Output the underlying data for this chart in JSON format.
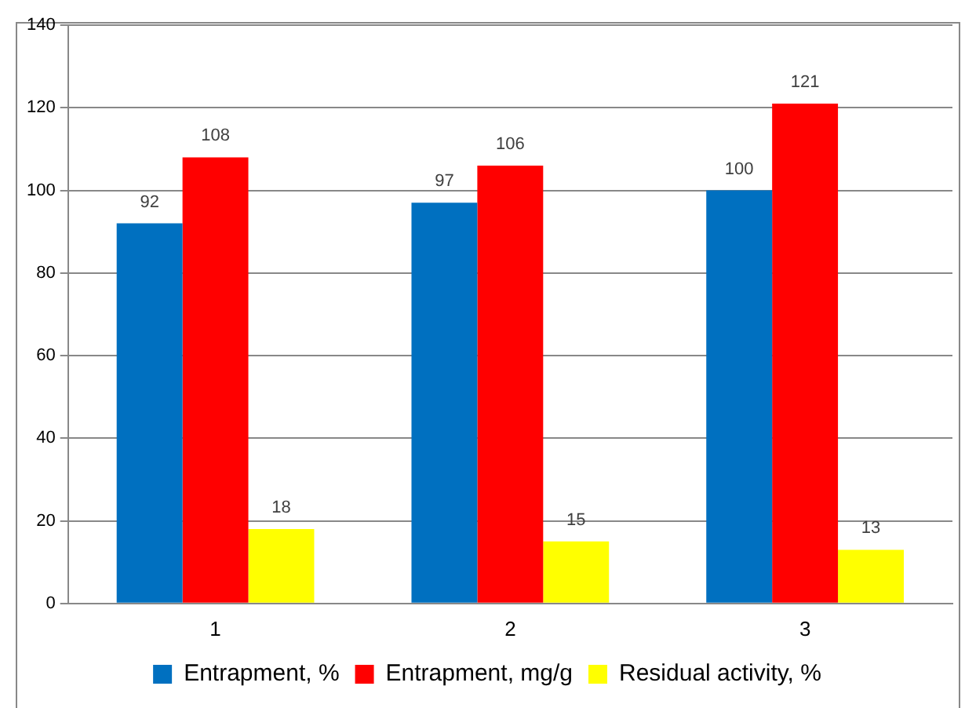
{
  "chart_data": {
    "type": "bar",
    "categories": [
      "1",
      "2",
      "3"
    ],
    "series": [
      {
        "name": "Entrapment, %",
        "color": "#0070c0",
        "values": [
          92,
          97,
          100
        ]
      },
      {
        "name": "Entrapment, mg/g",
        "color": "#ff0000",
        "values": [
          108,
          106,
          121
        ]
      },
      {
        "name": "Residual activity, %",
        "color": "#ffff00",
        "values": [
          18,
          15,
          13
        ]
      }
    ],
    "ylim": [
      0,
      140
    ],
    "yticks": [
      0,
      20,
      40,
      60,
      80,
      100,
      120,
      140
    ],
    "grid": "y",
    "legend": "bottom",
    "data_labels": true
  }
}
